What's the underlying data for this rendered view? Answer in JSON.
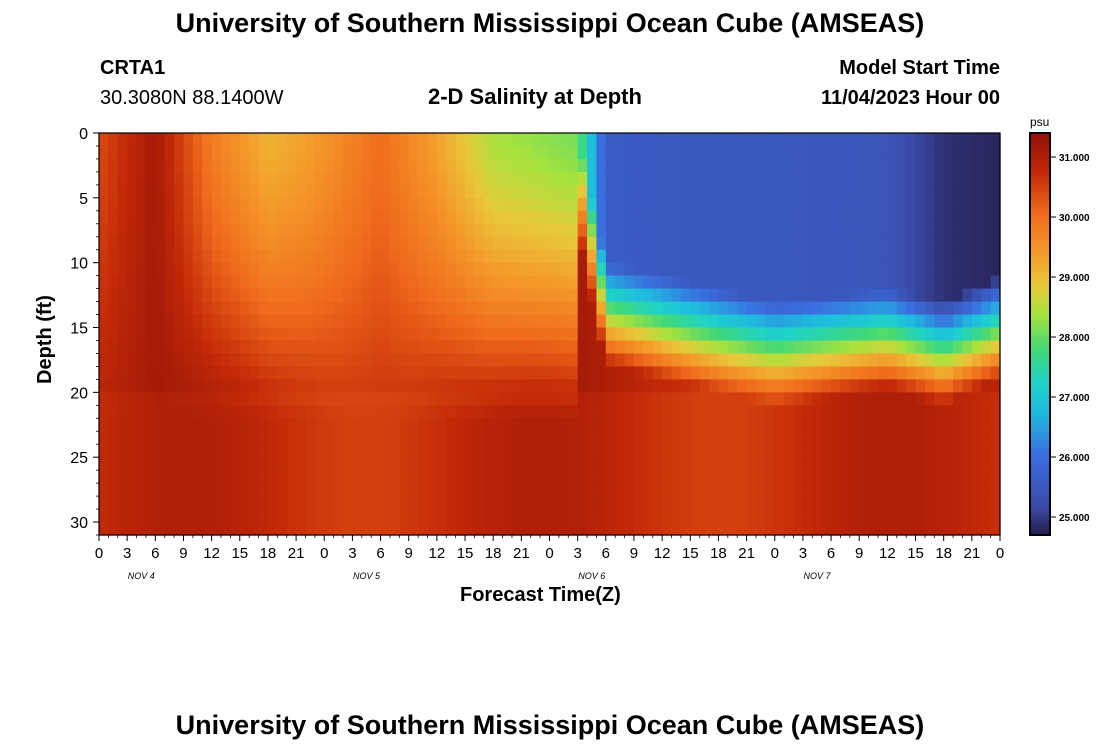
{
  "page": {
    "title": "University of Southern Mississippi Ocean Cube (AMSEAS)",
    "bottom_title": "University of Southern Mississippi Ocean Cube (AMSEAS)",
    "station": "CRTA1",
    "location": "30.3080N  88.1400W",
    "plot_title": "2-D Salinity at Depth",
    "model_start_label": "Model Start Time",
    "model_start_value": "11/04/2023 Hour 00"
  },
  "chart_data": {
    "type": "heatmap",
    "title": "2-D Salinity at Depth",
    "xlabel": "Forecast Time(Z)",
    "ylabel": "Depth (ft)",
    "x_hours_range": [
      0,
      96
    ],
    "ylim": [
      0,
      31
    ],
    "y_inverted": true,
    "x_tick_labels": [
      "0",
      "3",
      "6",
      "9",
      "12",
      "15",
      "18",
      "21",
      "0",
      "3",
      "6",
      "9",
      "12",
      "15",
      "18",
      "21",
      "0",
      "3",
      "6",
      "9",
      "12",
      "15",
      "18",
      "21",
      "0",
      "3",
      "6",
      "9",
      "12",
      "15",
      "18",
      "21",
      "0"
    ],
    "day_labels": [
      "NOV 4",
      "NOV 5",
      "NOV 6",
      "NOV 7"
    ],
    "y_ticks": [
      0,
      5,
      10,
      15,
      20,
      25,
      30
    ],
    "colorbar": {
      "unit": "psu",
      "min": 24.7,
      "max": 31.4,
      "ticks": [
        "31.000",
        "30.000",
        "29.000",
        "28.000",
        "27.000",
        "26.000",
        "25.000"
      ],
      "tick_values": [
        31,
        30,
        29,
        28,
        27,
        26,
        25
      ]
    },
    "salinity_features": {
      "surface_hours": [
        0,
        6,
        12,
        18,
        22,
        30,
        36,
        42,
        48,
        51,
        54,
        66,
        72,
        84,
        90,
        96
      ],
      "surface_psu": [
        30.4,
        31.1,
        29.8,
        29.1,
        29.3,
        30.0,
        29.3,
        28.4,
        28.2,
        28.1,
        25.6,
        25.5,
        25.5,
        25.4,
        24.9,
        24.8
      ],
      "halocline_depth_ft": [
        0,
        0,
        0,
        0,
        0,
        0,
        0,
        0,
        0,
        0,
        10,
        12,
        13,
        12,
        13,
        11
      ],
      "bottom_psu": 30.9
    },
    "colors": {
      "dark_red": "#8e0f08",
      "red": "#c42a08",
      "orange": "#f47a1f",
      "yellow": "#e8c83a",
      "green": "#a8e23c",
      "cyan": "#1fd3c8",
      "blue": "#3a6fe0",
      "navy": "#251c4a"
    }
  }
}
